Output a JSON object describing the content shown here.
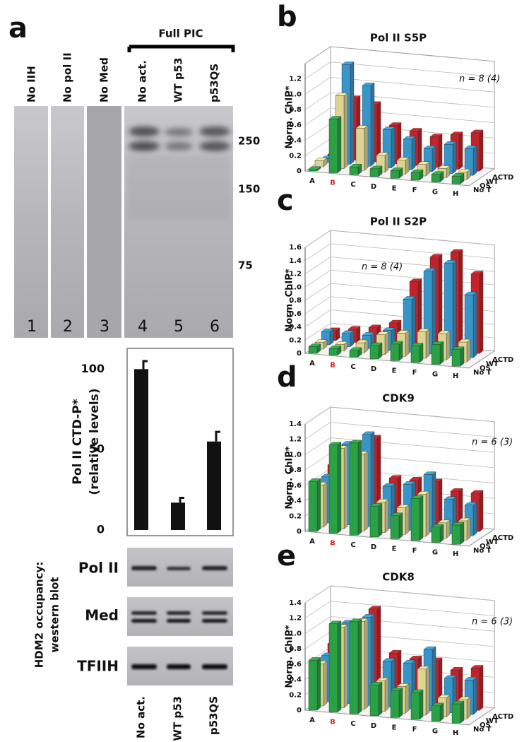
{
  "gel": {
    "panel": "a",
    "group_label": "Full PIC",
    "lanes": [
      {
        "label": "No IIH",
        "number": "1"
      },
      {
        "label": "No pol II",
        "number": "2"
      },
      {
        "label": "No Med",
        "number": "3"
      },
      {
        "label": "No act.",
        "number": "4"
      },
      {
        "label": "WT p53",
        "number": "5"
      },
      {
        "label": "p53QS",
        "number": "6"
      }
    ],
    "markers": [
      "250",
      "150",
      "75"
    ]
  },
  "western_blot": {
    "title_lines": [
      "HDM2 occupancy:",
      "western blot"
    ],
    "rows": [
      "Pol II",
      "Med",
      "TFIIH"
    ]
  },
  "chart_data": [
    {
      "type": "bar",
      "ylabel": [
        "Pol II CTD-P*",
        "(relative levels)"
      ],
      "categories": [
        "No act.",
        "WT p53",
        "p53QS"
      ],
      "values": [
        100,
        17,
        55
      ],
      "errors": [
        5,
        3,
        6
      ],
      "color": "#111111",
      "ylim": [
        0,
        112
      ],
      "yticks": [
        0,
        50,
        100
      ]
    },
    {
      "type": "bar3d",
      "panel": "b",
      "title": "Pol II S5P",
      "n_label": "n = 8 (4)",
      "ylabel": "Norm. ChIP*",
      "categories": [
        "A",
        "B",
        "C",
        "D",
        "E",
        "F",
        "G",
        "H"
      ],
      "highlight_category": "B",
      "highlight_color": "#d9262a",
      "ylim": [
        0,
        1.4
      ],
      "yticks": [
        0,
        0.2,
        0.4,
        0.6,
        0.8,
        {
          "value": 1,
          "label": "1.0"
        },
        1.2
      ],
      "series": [
        {
          "name": "No T",
          "color": "#2fb34b",
          "values": [
            0.02,
            0.7,
            0.1,
            0.1,
            0.1,
            0.1,
            0.1,
            0.1
          ]
        },
        {
          "name": "QS",
          "color": "#f6eda5",
          "values": [
            0.08,
            0.95,
            0.55,
            0.22,
            0.18,
            0.15,
            0.12,
            0.1
          ]
        },
        {
          "name": "WT",
          "color": "#3ea6e0",
          "values": [
            0.05,
            1.3,
            1.05,
            0.5,
            0.4,
            0.3,
            0.38,
            0.35
          ]
        },
        {
          "name": "ΔCTD",
          "color": "#d8262e",
          "values": [
            0.05,
            0.8,
            0.75,
            0.5,
            0.45,
            0.4,
            0.45,
            0.5
          ]
        }
      ]
    },
    {
      "type": "bar3d",
      "panel": "c",
      "title": "Pol II S2P",
      "n_label": "n = 8 (4)",
      "ylabel": "Norm. ChIP*",
      "categories": [
        "A",
        "B",
        "C",
        "D",
        "E",
        "F",
        "G",
        "H"
      ],
      "highlight_category": "B",
      "highlight_color": "#d9262a",
      "ylim": [
        0,
        1.6
      ],
      "yticks": [
        0,
        0.2,
        0.4,
        0.6,
        0.8,
        {
          "value": 1,
          "label": "1.0"
        },
        1.2,
        1.4,
        1.6
      ],
      "series": [
        {
          "name": "No T",
          "color": "#2fb34b",
          "values": [
            0.1,
            0.1,
            0.1,
            0.2,
            0.25,
            0.25,
            0.3,
            0.25
          ]
        },
        {
          "name": "QS",
          "color": "#f6eda5",
          "values": [
            0.1,
            0.1,
            0.15,
            0.3,
            0.35,
            0.4,
            0.4,
            0.3
          ]
        },
        {
          "name": "WT",
          "color": "#3ea6e0",
          "values": [
            0.2,
            0.2,
            0.2,
            0.3,
            0.8,
            1.25,
            1.4,
            0.95
          ]
        },
        {
          "name": "ΔCTD",
          "color": "#d8262e",
          "values": [
            0.15,
            0.2,
            0.25,
            0.35,
            1.0,
            1.4,
            1.5,
            1.2
          ]
        }
      ]
    },
    {
      "type": "bar3d",
      "panel": "d",
      "title": "CDK9",
      "n_label": "n = 6 (3)",
      "ylabel": "Norm. ChIP*",
      "categories": [
        "A",
        "B",
        "C",
        "D",
        "E",
        "F",
        "G",
        "H"
      ],
      "highlight_category": "B",
      "highlight_color": "#d9262a",
      "ylim": [
        0,
        1.4
      ],
      "yticks": [
        0,
        0.2,
        0.4,
        0.6,
        0.8,
        {
          "value": 1,
          "label": "1.0"
        },
        1.2,
        1.4
      ],
      "series": [
        {
          "name": "No T",
          "color": "#2fb34b",
          "values": [
            0.65,
            1.15,
            1.2,
            0.4,
            0.3,
            0.55,
            0.2,
            0.25
          ]
        },
        {
          "name": "QS",
          "color": "#f6eda5",
          "values": [
            0.55,
            1.05,
            1.0,
            0.4,
            0.35,
            0.55,
            0.2,
            0.25
          ]
        },
        {
          "name": "WT",
          "color": "#3ea6e0",
          "values": [
            0.6,
            1.05,
            1.2,
            0.55,
            0.6,
            0.75,
            0.45,
            0.4
          ]
        },
        {
          "name": "ΔCTD",
          "color": "#d8262e",
          "values": [
            0.7,
            1.0,
            1.1,
            0.6,
            0.6,
            0.6,
            0.5,
            0.5
          ]
        }
      ]
    },
    {
      "type": "bar3d",
      "panel": "e",
      "title": "CDK8",
      "n_label": "n = 6 (3)",
      "ylabel": "Norm. ChIP*",
      "categories": [
        "A",
        "B",
        "C",
        "D",
        "E",
        "F",
        "G",
        "H"
      ],
      "highlight_category": "B",
      "highlight_color": "#d9262a",
      "ylim": [
        0,
        1.4
      ],
      "yticks": [
        0,
        0.2,
        0.4,
        0.6,
        0.8,
        {
          "value": 1,
          "label": "1.0"
        },
        1.2,
        1.4
      ],
      "series": [
        {
          "name": "No T",
          "color": "#2fb34b",
          "values": [
            0.65,
            1.15,
            1.2,
            0.4,
            0.35,
            0.35,
            0.2,
            0.25
          ]
        },
        {
          "name": "QS",
          "color": "#f6eda5",
          "values": [
            0.55,
            1.05,
            1.15,
            0.4,
            0.35,
            0.6,
            0.25,
            0.25
          ]
        },
        {
          "name": "WT",
          "color": "#3ea6e0",
          "values": [
            0.6,
            1.05,
            1.15,
            0.6,
            0.6,
            0.8,
            0.45,
            0.45
          ]
        },
        {
          "name": "ΔCTD",
          "color": "#d8262e",
          "values": [
            0.7,
            0.95,
            1.2,
            0.65,
            0.6,
            0.6,
            0.5,
            0.55
          ]
        }
      ]
    }
  ]
}
